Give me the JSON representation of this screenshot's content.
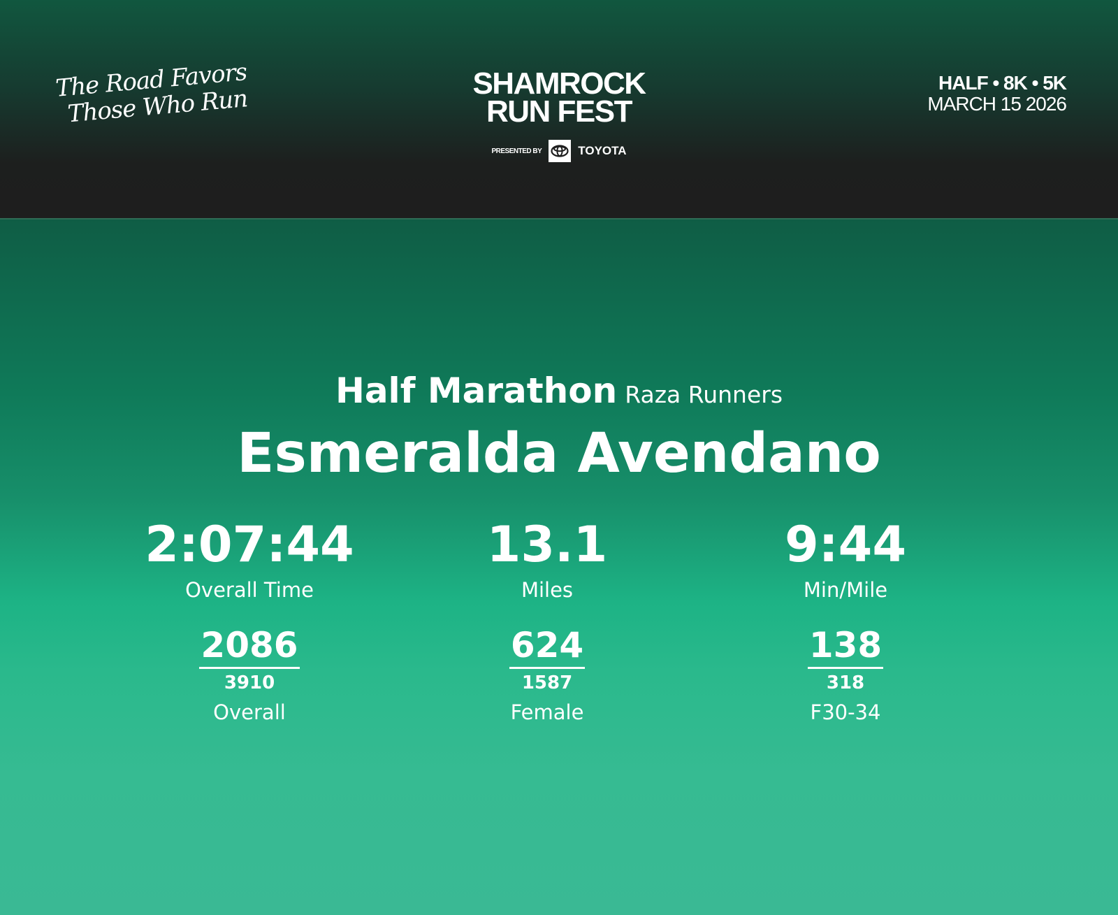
{
  "header": {
    "tagline_line1": "The Road Favors",
    "tagline_line2": "Those Who Run",
    "logo_line1": "SHAMROCK",
    "logo_line2": "RUN FEST",
    "presented_by": "PRESENTED BY",
    "sponsor": "TOYOTA",
    "races": "HALF • 8K • 5K",
    "date": "MARCH 15 2026"
  },
  "result": {
    "race": "Half Marathon",
    "team": "Raza Runners",
    "runner_name": "Esmeralda Avendano",
    "stats": [
      {
        "value": "2:07:44",
        "label": "Overall Time"
      },
      {
        "value": "13.1",
        "label": "Miles"
      },
      {
        "value": "9:44",
        "label": "Min/Mile"
      }
    ],
    "placements": [
      {
        "place": "2086",
        "total": "3910",
        "category": "Overall"
      },
      {
        "place": "624",
        "total": "1587",
        "category": "Female"
      },
      {
        "place": "138",
        "total": "318",
        "category": "F30-34"
      }
    ]
  },
  "colors": {
    "header_bg": "#1e1e1e",
    "accent_green": "#1db385"
  }
}
